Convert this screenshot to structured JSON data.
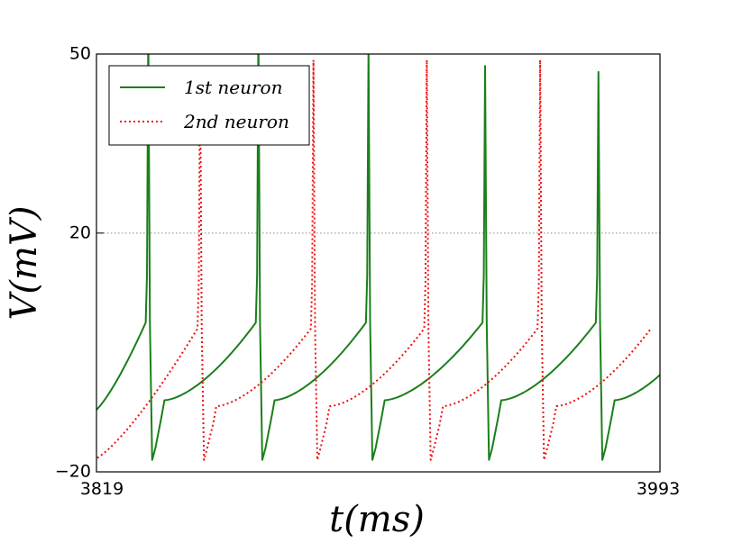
{
  "chart_data": {
    "type": "line",
    "title": "",
    "xlabel": "t(ms)",
    "ylabel": "V(mV)",
    "xlim": [
      3819,
      3993
    ],
    "ylim": [
      -20,
      50
    ],
    "xticks": [
      "3819",
      "3993"
    ],
    "yticks": [
      "50",
      "20",
      "−20"
    ],
    "ytick_values": [
      50,
      20,
      -20
    ],
    "threshold": {
      "value": 20,
      "style": "dotted",
      "color": "#888888"
    },
    "legend_position": "top-left",
    "series": [
      {
        "name": "1st neuron",
        "color": "#1a7f1a",
        "style": "solid",
        "spike_times": [
          3835,
          3869,
          3903,
          3939,
          3974
        ],
        "spike_peaks": [
          55,
          55,
          51,
          48,
          47
        ],
        "ramp_start": -8,
        "ramp_end": 5,
        "trough": -18,
        "reset_v": -12.5,
        "start_v": -10
      },
      {
        "name": "2nd neuron",
        "color": "#ee1111",
        "style": "dotted",
        "spike_times": [
          3851,
          3886,
          3921,
          3956
        ],
        "spike_peaks": [
          48,
          49,
          49,
          49
        ],
        "ramp_start": -9,
        "ramp_end": 4,
        "trough": -18,
        "reset_v": -13,
        "start_v": -18
      }
    ]
  }
}
